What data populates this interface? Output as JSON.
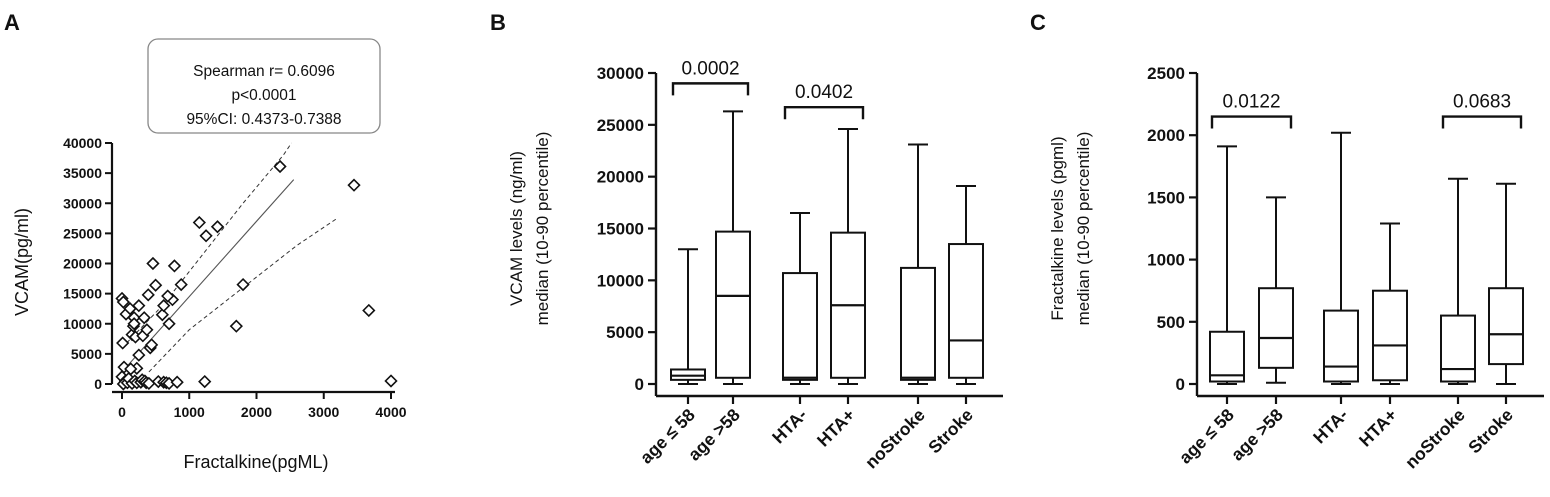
{
  "colors": {
    "ink": "#111111",
    "box_fill": "#ffffff",
    "annotation_border": "#888888"
  },
  "chart_data": [
    {
      "panel_letter": "A",
      "type": "scatter",
      "xlabel": "Fractalkine(pgML)",
      "ylabel": "VCAM(pg/ml)",
      "xlim": [
        0,
        4000
      ],
      "ylim": [
        0,
        40000
      ],
      "xticks": [
        0,
        1000,
        2000,
        3000,
        4000
      ],
      "yticks": [
        0,
        5000,
        10000,
        15000,
        20000,
        25000,
        30000,
        35000,
        40000
      ],
      "annotation": [
        "Spearman r= 0.6096",
        "p<0.0001",
        "95%CI: 0.4373-0.7388"
      ],
      "marker": "open-diamond",
      "points": [
        [
          0,
          14200
        ],
        [
          20,
          13600
        ],
        [
          10,
          6800
        ],
        [
          30,
          2800
        ],
        [
          0,
          1200
        ],
        [
          50,
          500
        ],
        [
          20,
          0
        ],
        [
          80,
          200
        ],
        [
          100,
          900
        ],
        [
          60,
          11600
        ],
        [
          120,
          12500
        ],
        [
          150,
          8200
        ],
        [
          170,
          9600
        ],
        [
          200,
          7800
        ],
        [
          180,
          11000
        ],
        [
          250,
          13000
        ],
        [
          220,
          2600
        ],
        [
          130,
          2500
        ],
        [
          150,
          100
        ],
        [
          190,
          500
        ],
        [
          220,
          200
        ],
        [
          280,
          300
        ],
        [
          300,
          700
        ],
        [
          340,
          500
        ],
        [
          360,
          200
        ],
        [
          400,
          100
        ],
        [
          310,
          8000
        ],
        [
          330,
          11000
        ],
        [
          370,
          9000
        ],
        [
          390,
          14800
        ],
        [
          420,
          6000
        ],
        [
          440,
          6500
        ],
        [
          460,
          20000
        ],
        [
          500,
          16400
        ],
        [
          600,
          11500
        ],
        [
          620,
          13000
        ],
        [
          750,
          14000
        ],
        [
          700,
          10000
        ],
        [
          780,
          19600
        ],
        [
          880,
          16500
        ],
        [
          540,
          400
        ],
        [
          620,
          300
        ],
        [
          660,
          200
        ],
        [
          700,
          100
        ],
        [
          820,
          300
        ],
        [
          1150,
          26800
        ],
        [
          1250,
          24600
        ],
        [
          1420,
          26100
        ],
        [
          1700,
          9600
        ],
        [
          1800,
          16500
        ],
        [
          1230,
          400
        ],
        [
          2350,
          36100
        ],
        [
          3450,
          33000
        ],
        [
          3670,
          12200
        ],
        [
          4000,
          500
        ],
        [
          680,
          14600
        ],
        [
          250,
          4800
        ],
        [
          180,
          10000
        ]
      ],
      "regression": {
        "slope": 12.5,
        "intercept": 2000
      },
      "ci_lower": [
        [
          400,
          2000
        ],
        [
          1000,
          9000
        ],
        [
          1800,
          16000
        ],
        [
          2600,
          23000
        ],
        [
          3200,
          27500
        ]
      ],
      "ci_upper": [
        [
          0,
          6000
        ],
        [
          600,
          13000
        ],
        [
          1200,
          21500
        ],
        [
          1800,
          30000
        ],
        [
          2400,
          38000
        ],
        [
          2520,
          40000
        ]
      ]
    },
    {
      "panel_letter": "B",
      "type": "box",
      "ylabel": [
        "VCAM levels (ng/ml)",
        "median (10-90 percentile)"
      ],
      "ylim": [
        0,
        30000
      ],
      "yticks": [
        0,
        5000,
        10000,
        15000,
        20000,
        25000,
        30000
      ],
      "categories": [
        "age ≤ 58",
        "age >58",
        "HTA-",
        "HTA+",
        "noStroke",
        "Stroke"
      ],
      "boxes": [
        {
          "whisker_low": 0,
          "q1": 400,
          "median": 800,
          "q3": 1400,
          "whisker_high": 13000
        },
        {
          "whisker_low": 0,
          "q1": 600,
          "median": 8500,
          "q3": 14700,
          "whisker_high": 26300
        },
        {
          "whisker_low": 0,
          "q1": 400,
          "median": 600,
          "q3": 10700,
          "whisker_high": 16500
        },
        {
          "whisker_low": 0,
          "q1": 600,
          "median": 7600,
          "q3": 14600,
          "whisker_high": 24600
        },
        {
          "whisker_low": 0,
          "q1": 400,
          "median": 600,
          "q3": 11200,
          "whisker_high": 23100
        },
        {
          "whisker_low": 0,
          "q1": 600,
          "median": 4200,
          "q3": 13500,
          "whisker_high": 19100
        }
      ],
      "comparisons": [
        {
          "from": 0,
          "to": 1,
          "label": "0.0002",
          "level": 29000
        },
        {
          "from": 2,
          "to": 3,
          "label": "0.0402",
          "level": 26700
        }
      ]
    },
    {
      "panel_letter": "C",
      "type": "box",
      "ylabel": [
        "Fractalkine levels (pgml)",
        "median (10-90 percentile)"
      ],
      "ylim": [
        0,
        2500
      ],
      "yticks": [
        0,
        500,
        1000,
        1500,
        2000,
        2500
      ],
      "categories": [
        "age ≤ 58",
        "age >58",
        "HTA-",
        "HTA+",
        "noStroke",
        "Stroke"
      ],
      "boxes": [
        {
          "whisker_low": 0,
          "q1": 20,
          "median": 70,
          "q3": 420,
          "whisker_high": 1910
        },
        {
          "whisker_low": 10,
          "q1": 130,
          "median": 370,
          "q3": 770,
          "whisker_high": 1500
        },
        {
          "whisker_low": 0,
          "q1": 20,
          "median": 140,
          "q3": 590,
          "whisker_high": 2020
        },
        {
          "whisker_low": 0,
          "q1": 30,
          "median": 310,
          "q3": 750,
          "whisker_high": 1290
        },
        {
          "whisker_low": 0,
          "q1": 20,
          "median": 120,
          "q3": 550,
          "whisker_high": 1650
        },
        {
          "whisker_low": 0,
          "q1": 160,
          "median": 400,
          "q3": 770,
          "whisker_high": 1610
        }
      ],
      "comparisons": [
        {
          "from": 0,
          "to": 1,
          "label": "0.0122",
          "level": 2150
        },
        {
          "from": 4,
          "to": 5,
          "label": "0.0683",
          "level": 2150
        }
      ]
    }
  ]
}
